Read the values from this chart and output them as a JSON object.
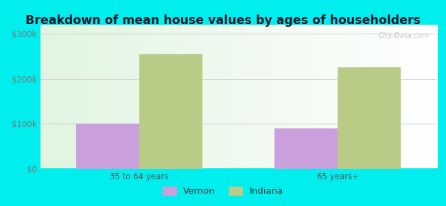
{
  "title": "Breakdown of mean house values by ages of householders",
  "categories": [
    "35 to 64 years",
    "65 years+"
  ],
  "vernon_values": [
    100000,
    90000
  ],
  "indiana_values": [
    255000,
    225000
  ],
  "vernon_color": "#c9a0dc",
  "indiana_color": "#b8cc88",
  "background_color": "#00eeee",
  "yticks": [
    0,
    100000,
    200000,
    300000
  ],
  "ylabels": [
    "$0",
    "$100k",
    "$200k",
    "$300k"
  ],
  "ylim": [
    0,
    320000
  ],
  "legend_labels": [
    "Vernon",
    "Indiana"
  ],
  "title_fontsize": 12.5,
  "tick_fontsize": 8.5,
  "legend_fontsize": 9.5,
  "bar_width": 0.35,
  "watermark": "City-Data.com"
}
